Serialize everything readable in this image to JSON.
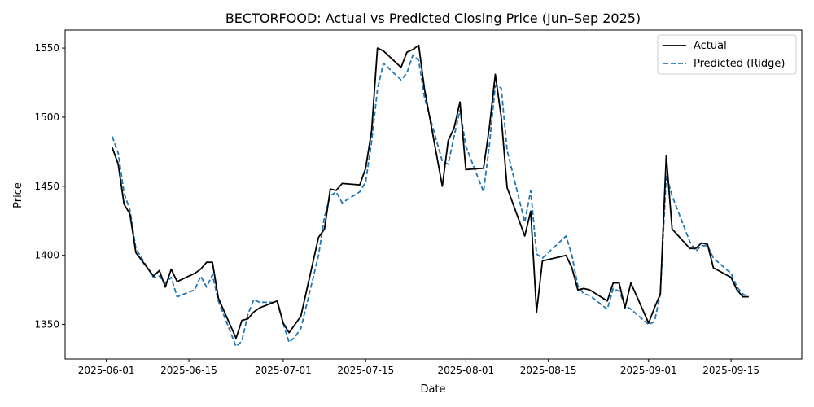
{
  "chart_data": {
    "type": "line",
    "title": "BECTORFOOD: Actual vs Predicted Closing Price (Jun–Sep 2025)",
    "xlabel": "Date",
    "ylabel": "Price",
    "xlim": [
      "2025-05-25",
      "2025-09-27"
    ],
    "ylim": [
      1325,
      1563
    ],
    "x_ticks": [
      "2025-06-01",
      "2025-06-15",
      "2025-07-01",
      "2025-07-15",
      "2025-08-01",
      "2025-08-15",
      "2025-09-01",
      "2025-09-15"
    ],
    "y_ticks": [
      1350,
      1400,
      1450,
      1500,
      1550
    ],
    "grid": false,
    "legend_position": "top-right",
    "series": [
      {
        "name": "Actual",
        "color": "#000000",
        "style": "solid",
        "points": [
          [
            "2025-06-02",
            1478
          ],
          [
            "2025-06-03",
            1466
          ],
          [
            "2025-06-04",
            1437
          ],
          [
            "2025-06-05",
            1430
          ],
          [
            "2025-06-06",
            1402
          ],
          [
            "2025-06-09",
            1385
          ],
          [
            "2025-06-10",
            1389
          ],
          [
            "2025-06-11",
            1377
          ],
          [
            "2025-06-12",
            1390
          ],
          [
            "2025-06-13",
            1381
          ],
          [
            "2025-06-16",
            1387
          ],
          [
            "2025-06-17",
            1390
          ],
          [
            "2025-06-18",
            1395
          ],
          [
            "2025-06-19",
            1395
          ],
          [
            "2025-06-20",
            1369
          ],
          [
            "2025-06-23",
            1340
          ],
          [
            "2025-06-24",
            1353
          ],
          [
            "2025-06-25",
            1354
          ],
          [
            "2025-06-26",
            1359
          ],
          [
            "2025-06-27",
            1362
          ],
          [
            "2025-06-30",
            1367
          ],
          [
            "2025-07-01",
            1351
          ],
          [
            "2025-07-02",
            1344
          ],
          [
            "2025-07-03",
            1350
          ],
          [
            "2025-07-04",
            1356
          ],
          [
            "2025-07-07",
            1413
          ],
          [
            "2025-07-08",
            1419
          ],
          [
            "2025-07-09",
            1448
          ],
          [
            "2025-07-10",
            1447
          ],
          [
            "2025-07-11",
            1452
          ],
          [
            "2025-07-14",
            1451
          ],
          [
            "2025-07-15",
            1463
          ],
          [
            "2025-07-16",
            1490
          ],
          [
            "2025-07-17",
            1550
          ],
          [
            "2025-07-18",
            1548
          ],
          [
            "2025-07-21",
            1536
          ],
          [
            "2025-07-22",
            1547
          ],
          [
            "2025-07-23",
            1549
          ],
          [
            "2025-07-24",
            1552
          ],
          [
            "2025-07-25",
            1520
          ],
          [
            "2025-07-28",
            1450
          ],
          [
            "2025-07-29",
            1483
          ],
          [
            "2025-07-30",
            1492
          ],
          [
            "2025-07-31",
            1511
          ],
          [
            "2025-08-01",
            1462
          ],
          [
            "2025-08-04",
            1463
          ],
          [
            "2025-08-05",
            1493
          ],
          [
            "2025-08-06",
            1531
          ],
          [
            "2025-08-07",
            1500
          ],
          [
            "2025-08-08",
            1449
          ],
          [
            "2025-08-11",
            1414
          ],
          [
            "2025-08-12",
            1432
          ],
          [
            "2025-08-13",
            1359
          ],
          [
            "2025-08-14",
            1396
          ],
          [
            "2025-08-18",
            1400
          ],
          [
            "2025-08-19",
            1391
          ],
          [
            "2025-08-20",
            1375
          ],
          [
            "2025-08-21",
            1376
          ],
          [
            "2025-08-22",
            1375
          ],
          [
            "2025-08-25",
            1367
          ],
          [
            "2025-08-26",
            1380
          ],
          [
            "2025-08-27",
            1380
          ],
          [
            "2025-08-28",
            1362
          ],
          [
            "2025-08-29",
            1380
          ],
          [
            "2025-09-01",
            1351
          ],
          [
            "2025-09-02",
            1362
          ],
          [
            "2025-09-03",
            1372
          ],
          [
            "2025-09-04",
            1472
          ],
          [
            "2025-09-05",
            1419
          ],
          [
            "2025-09-08",
            1405
          ],
          [
            "2025-09-09",
            1405
          ],
          [
            "2025-09-10",
            1409
          ],
          [
            "2025-09-11",
            1408
          ],
          [
            "2025-09-12",
            1391
          ],
          [
            "2025-09-15",
            1384
          ],
          [
            "2025-09-16",
            1375
          ],
          [
            "2025-09-17",
            1370
          ],
          [
            "2025-09-18",
            1370
          ]
        ]
      },
      {
        "name": "Predicted (Ridge)",
        "color": "#1f77b4",
        "style": "dashed",
        "points": [
          [
            "2025-06-02",
            1486
          ],
          [
            "2025-06-03",
            1474
          ],
          [
            "2025-06-04",
            1445
          ],
          [
            "2025-06-05",
            1433
          ],
          [
            "2025-06-06",
            1405
          ],
          [
            "2025-06-09",
            1384
          ],
          [
            "2025-06-10",
            1385
          ],
          [
            "2025-06-11",
            1380
          ],
          [
            "2025-06-12",
            1384
          ],
          [
            "2025-06-13",
            1370
          ],
          [
            "2025-06-16",
            1375
          ],
          [
            "2025-06-17",
            1385
          ],
          [
            "2025-06-18",
            1377
          ],
          [
            "2025-06-19",
            1386
          ],
          [
            "2025-06-20",
            1367
          ],
          [
            "2025-06-23",
            1334
          ],
          [
            "2025-06-24",
            1338
          ],
          [
            "2025-06-25",
            1357
          ],
          [
            "2025-06-26",
            1368
          ],
          [
            "2025-06-27",
            1366
          ],
          [
            "2025-06-30",
            1366
          ],
          [
            "2025-07-01",
            1351
          ],
          [
            "2025-07-02",
            1337
          ],
          [
            "2025-07-03",
            1341
          ],
          [
            "2025-07-04",
            1347
          ],
          [
            "2025-07-07",
            1400
          ],
          [
            "2025-07-08",
            1428
          ],
          [
            "2025-07-09",
            1443
          ],
          [
            "2025-07-10",
            1446
          ],
          [
            "2025-07-11",
            1438
          ],
          [
            "2025-07-14",
            1446
          ],
          [
            "2025-07-15",
            1453
          ],
          [
            "2025-07-16",
            1482
          ],
          [
            "2025-07-17",
            1520
          ],
          [
            "2025-07-18",
            1539
          ],
          [
            "2025-07-21",
            1527
          ],
          [
            "2025-07-22",
            1532
          ],
          [
            "2025-07-23",
            1545
          ],
          [
            "2025-07-24",
            1541
          ],
          [
            "2025-07-25",
            1514
          ],
          [
            "2025-07-28",
            1468
          ],
          [
            "2025-07-29",
            1466
          ],
          [
            "2025-07-30",
            1486
          ],
          [
            "2025-07-31",
            1505
          ],
          [
            "2025-08-01",
            1479
          ],
          [
            "2025-08-04",
            1446
          ],
          [
            "2025-08-05",
            1480
          ],
          [
            "2025-08-06",
            1523
          ],
          [
            "2025-08-07",
            1521
          ],
          [
            "2025-08-08",
            1476
          ],
          [
            "2025-08-11",
            1424
          ],
          [
            "2025-08-12",
            1447
          ],
          [
            "2025-08-13",
            1401
          ],
          [
            "2025-08-14",
            1398
          ],
          [
            "2025-08-18",
            1414
          ],
          [
            "2025-08-19",
            1400
          ],
          [
            "2025-08-20",
            1378
          ],
          [
            "2025-08-21",
            1372
          ],
          [
            "2025-08-22",
            1371
          ],
          [
            "2025-08-25",
            1361
          ],
          [
            "2025-08-26",
            1376
          ],
          [
            "2025-08-27",
            1374
          ],
          [
            "2025-08-28",
            1364
          ],
          [
            "2025-08-29",
            1361
          ],
          [
            "2025-09-01",
            1350
          ],
          [
            "2025-09-02",
            1352
          ],
          [
            "2025-09-03",
            1372
          ],
          [
            "2025-09-04",
            1458
          ],
          [
            "2025-09-05",
            1443
          ],
          [
            "2025-09-08",
            1410
          ],
          [
            "2025-09-09",
            1403
          ],
          [
            "2025-09-10",
            1407
          ],
          [
            "2025-09-11",
            1407
          ],
          [
            "2025-09-12",
            1398
          ],
          [
            "2025-09-15",
            1387
          ],
          [
            "2025-09-16",
            1377
          ],
          [
            "2025-09-17",
            1372
          ],
          [
            "2025-09-18",
            1370
          ]
        ]
      }
    ]
  }
}
